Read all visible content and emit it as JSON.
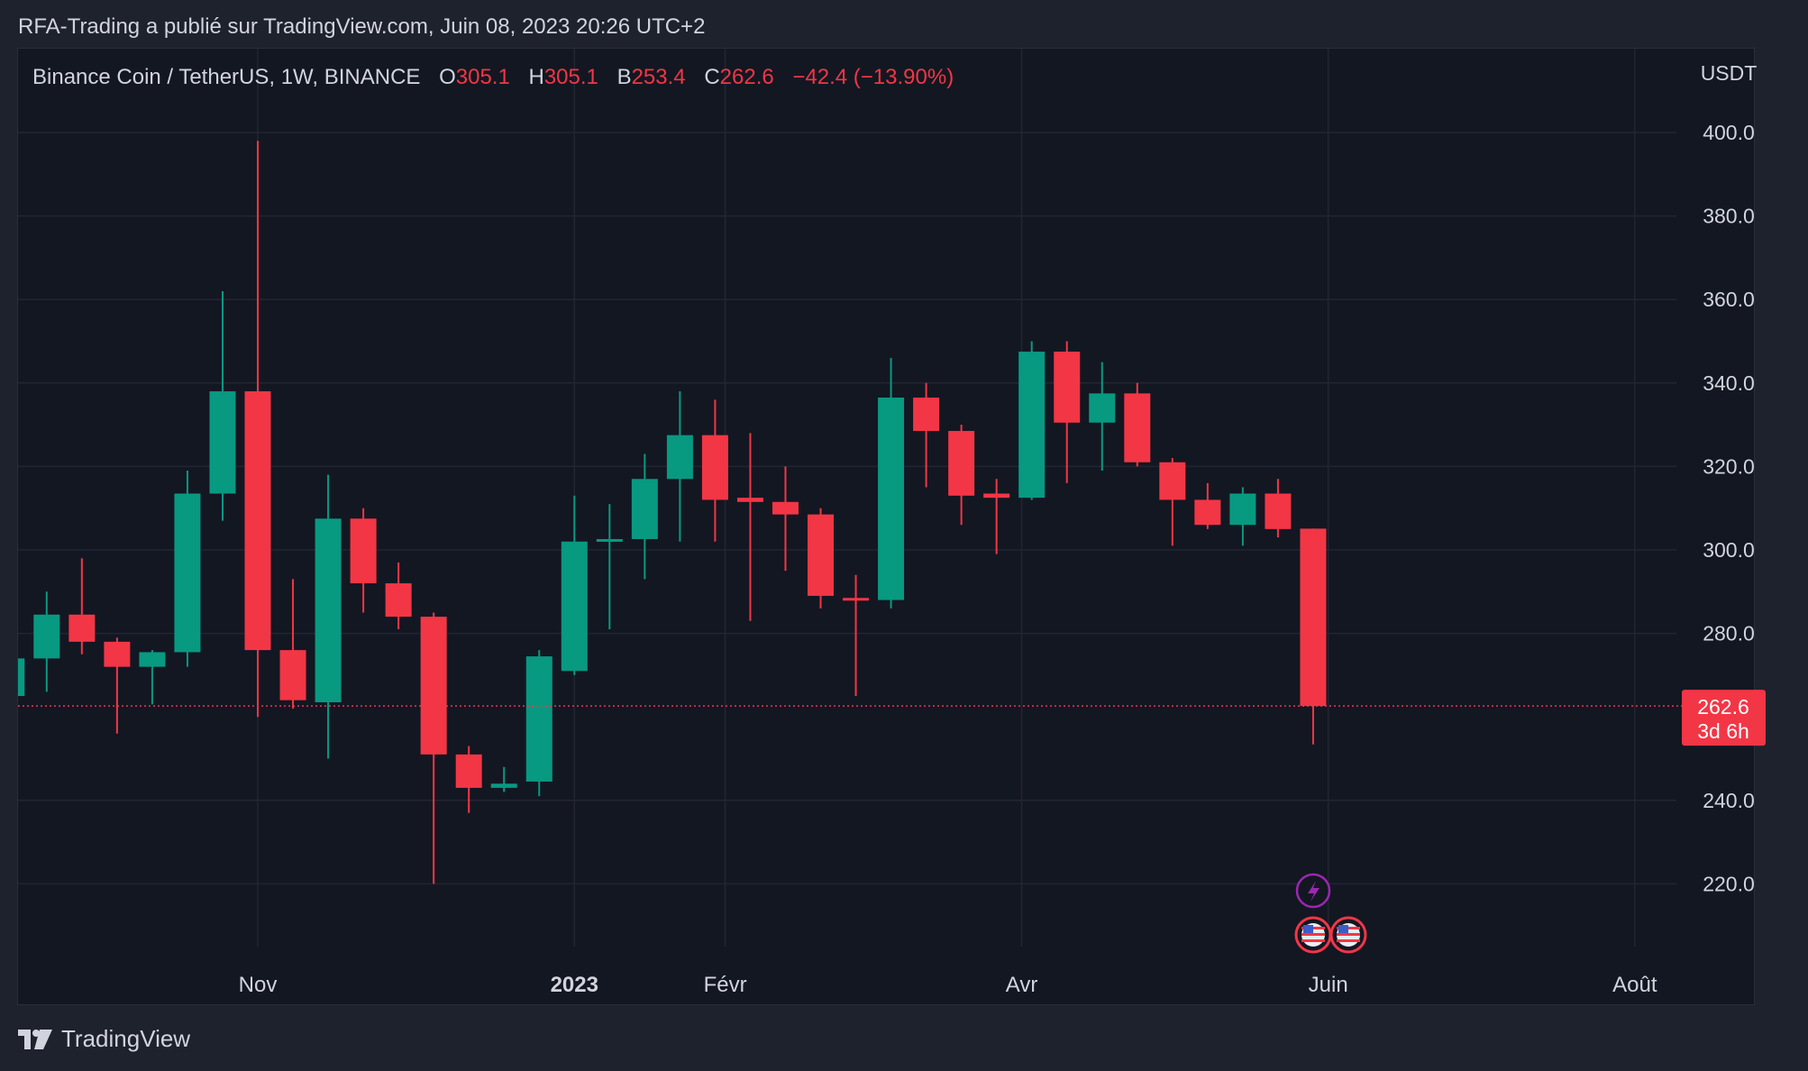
{
  "header": {
    "publisher_line": "RFA-Trading a publié sur TradingView.com, Juin 08, 2023 20:26 UTC+2"
  },
  "legend": {
    "symbol": "Binance Coin / TetherUS, 1W, BINANCE",
    "open_label": "O",
    "open": "305.1",
    "high_label": "H",
    "high": "305.1",
    "low_label": "B",
    "low": "253.4",
    "close_label": "C",
    "close": "262.6",
    "change": "−42.4 (−13.90%)"
  },
  "footer": {
    "brand": "TradingView"
  },
  "colors": {
    "up": "#089981",
    "down": "#f23645",
    "background": "#131722",
    "grid": "#232632",
    "text": "#d1d4dc",
    "price_label_bg": "#f23645",
    "event_icon": "#9c27b0"
  },
  "chart_data": {
    "type": "candlestick",
    "title": "Binance Coin / TetherUS, 1W, BINANCE",
    "currency": "USDT",
    "ylim": [
      202,
      418
    ],
    "yticks": [
      220,
      240,
      280,
      300,
      320,
      340,
      360,
      380,
      400
    ],
    "ytick_labels": [
      "220.0",
      "240.0",
      "280.0",
      "300.0",
      "320.0",
      "340.0",
      "360.0",
      "380.0",
      "400.0"
    ],
    "grid": true,
    "xticks": [
      {
        "label": "Nov",
        "at": "2022-10-31",
        "bold": false
      },
      {
        "label": "2023",
        "at": "2023-01-02",
        "bold": true
      },
      {
        "label": "Févr",
        "at": "2023-02-01",
        "bold": false
      },
      {
        "label": "Avr",
        "at": "2023-04-01",
        "bold": false
      },
      {
        "label": "Juin",
        "at": "2023-06-01",
        "bold": false
      },
      {
        "label": "Août",
        "at": "2023-08-01",
        "bold": false
      }
    ],
    "last_price": {
      "value": 262.6,
      "label": "262.6",
      "countdown": "3d 6h"
    },
    "candles": [
      {
        "date": "2022-09-12",
        "open": 265.0,
        "high": 276.0,
        "low": 263.0,
        "close": 274.0
      },
      {
        "date": "2022-09-19",
        "open": 274.0,
        "high": 290.0,
        "low": 266.0,
        "close": 284.5
      },
      {
        "date": "2022-09-26",
        "open": 284.5,
        "high": 298.0,
        "low": 275.0,
        "close": 278.0
      },
      {
        "date": "2022-10-03",
        "open": 278.0,
        "high": 279.0,
        "low": 256.0,
        "close": 272.0
      },
      {
        "date": "2022-10-10",
        "open": 272.0,
        "high": 276.0,
        "low": 263.0,
        "close": 275.5
      },
      {
        "date": "2022-10-17",
        "open": 275.5,
        "high": 319.0,
        "low": 272.0,
        "close": 313.5
      },
      {
        "date": "2022-10-24",
        "open": 313.5,
        "high": 362.0,
        "low": 307.0,
        "close": 338.0
      },
      {
        "date": "2022-10-31",
        "open": 338.0,
        "high": 398.0,
        "low": 260.0,
        "close": 276.0
      },
      {
        "date": "2022-11-07",
        "open": 276.0,
        "high": 293.0,
        "low": 262.0,
        "close": 264.0
      },
      {
        "date": "2022-11-14",
        "open": 263.5,
        "high": 318.0,
        "low": 250.0,
        "close": 307.5
      },
      {
        "date": "2022-11-21",
        "open": 307.5,
        "high": 310.0,
        "low": 285.0,
        "close": 292.0
      },
      {
        "date": "2022-11-28",
        "open": 292.0,
        "high": 297.0,
        "low": 281.0,
        "close": 284.0
      },
      {
        "date": "2022-12-05",
        "open": 284.0,
        "high": 285.0,
        "low": 220.0,
        "close": 251.0
      },
      {
        "date": "2022-12-12",
        "open": 251.0,
        "high": 253.0,
        "low": 237.0,
        "close": 243.0
      },
      {
        "date": "2022-12-19",
        "open": 243.0,
        "high": 248.0,
        "low": 242.0,
        "close": 244.0
      },
      {
        "date": "2022-12-26",
        "open": 244.5,
        "high": 276.0,
        "low": 241.0,
        "close": 274.5
      },
      {
        "date": "2023-01-02",
        "open": 271.0,
        "high": 313.0,
        "low": 270.0,
        "close": 302.0
      },
      {
        "date": "2023-01-09",
        "open": 302.0,
        "high": 311.0,
        "low": 281.0,
        "close": 302.6
      },
      {
        "date": "2023-01-16",
        "open": 302.6,
        "high": 323.0,
        "low": 293.0,
        "close": 317.0
      },
      {
        "date": "2023-01-23",
        "open": 317.0,
        "high": 338.0,
        "low": 302.0,
        "close": 327.5
      },
      {
        "date": "2023-01-30",
        "open": 327.5,
        "high": 336.0,
        "low": 302.0,
        "close": 312.0
      },
      {
        "date": "2023-02-06",
        "open": 312.5,
        "high": 328.0,
        "low": 283.0,
        "close": 311.5
      },
      {
        "date": "2023-02-13",
        "open": 311.5,
        "high": 320.0,
        "low": 295.0,
        "close": 308.5
      },
      {
        "date": "2023-02-20",
        "open": 308.5,
        "high": 310.0,
        "low": 286.0,
        "close": 289.0
      },
      {
        "date": "2023-02-27",
        "open": 288.5,
        "high": 294.0,
        "low": 265.0,
        "close": 288.0
      },
      {
        "date": "2023-03-06",
        "open": 288.0,
        "high": 346.0,
        "low": 286.0,
        "close": 336.5
      },
      {
        "date": "2023-03-13",
        "open": 336.5,
        "high": 340.0,
        "low": 315.0,
        "close": 328.5
      },
      {
        "date": "2023-03-20",
        "open": 328.5,
        "high": 330.0,
        "low": 306.0,
        "close": 313.0
      },
      {
        "date": "2023-03-27",
        "open": 313.5,
        "high": 317.0,
        "low": 299.0,
        "close": 312.5
      },
      {
        "date": "2023-04-03",
        "open": 312.5,
        "high": 350.0,
        "low": 312.0,
        "close": 347.5
      },
      {
        "date": "2023-04-10",
        "open": 347.5,
        "high": 350.0,
        "low": 316.0,
        "close": 330.5
      },
      {
        "date": "2023-04-17",
        "open": 330.5,
        "high": 345.0,
        "low": 319.0,
        "close": 337.5
      },
      {
        "date": "2023-04-24",
        "open": 337.5,
        "high": 340.0,
        "low": 320.0,
        "close": 321.0
      },
      {
        "date": "2023-05-01",
        "open": 321.0,
        "high": 322.0,
        "low": 301.0,
        "close": 312.0
      },
      {
        "date": "2023-05-08",
        "open": 312.0,
        "high": 316.0,
        "low": 305.0,
        "close": 306.0
      },
      {
        "date": "2023-05-15",
        "open": 306.0,
        "high": 315.0,
        "low": 301.0,
        "close": 313.5
      },
      {
        "date": "2023-05-22",
        "open": 313.5,
        "high": 317.0,
        "low": 303.0,
        "close": 305.0
      },
      {
        "date": "2023-05-29",
        "open": 305.1,
        "high": 305.1,
        "low": 253.4,
        "close": 262.6
      }
    ]
  }
}
